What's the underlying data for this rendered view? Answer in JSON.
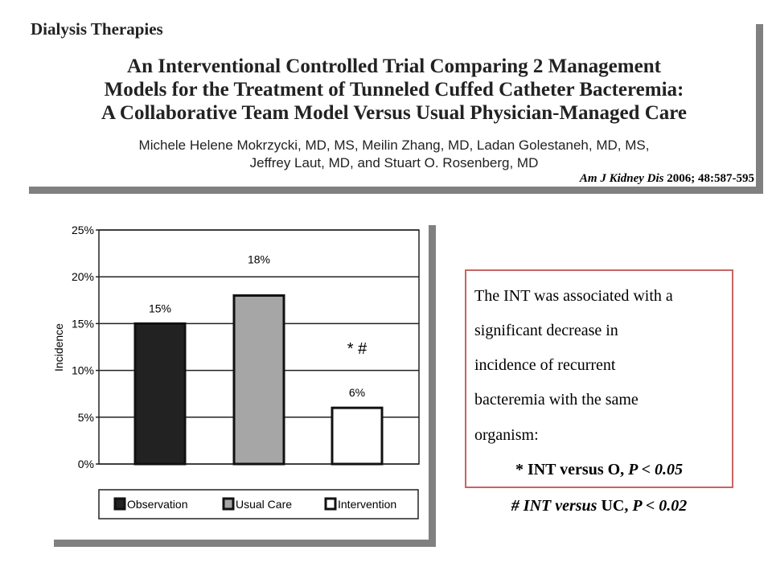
{
  "header": {
    "section": "Dialysis Therapies",
    "title_lines": [
      "An Interventional Controlled Trial Comparing 2 Management",
      "Models for the Treatment of Tunneled Cuffed Catheter Bacteremia:",
      "A Collaborative Team Model Versus Usual Physician-Managed Care"
    ],
    "author_lines": [
      "Michele Helene Mokrzycki, MD, MS, Meilin Zhang, MD, Ladan Golestaneh, MD, MS,",
      "Jeffrey Laut, MD, and Stuart O. Rosenberg, MD"
    ],
    "citation_journal": "Am J Kidney Dis",
    "citation_rest": " 2006; 48:587-595"
  },
  "chart_data": {
    "type": "bar",
    "title": "",
    "xlabel": "",
    "ylabel": "Incidence",
    "categories": [
      "Observation",
      "Usual Care",
      "Intervention"
    ],
    "values": [
      15,
      18,
      6
    ],
    "data_labels": [
      "15%",
      "18%",
      "6%"
    ],
    "colors": [
      "#222222",
      "#a6a6a6",
      "#ffffff"
    ],
    "ylim": [
      0,
      25
    ],
    "yticks": [
      "0%",
      "5%",
      "10%",
      "15%",
      "20%",
      "25%"
    ],
    "grid": true,
    "legend_position": "bottom",
    "annotation": "* #"
  },
  "note": {
    "lines": [
      "The INT was associated with a",
      "significant decrease in",
      "incidence of recurrent",
      "bacteremia with the same",
      "organism:"
    ],
    "sig1_prefix": "* INT versus O, ",
    "sig1_p": "P < 0.05",
    "sig2_prefix": "# INT versus",
    "sig2_mid": " UC, ",
    "sig2_p": "P < 0.02",
    "border_color": "#c86464"
  }
}
